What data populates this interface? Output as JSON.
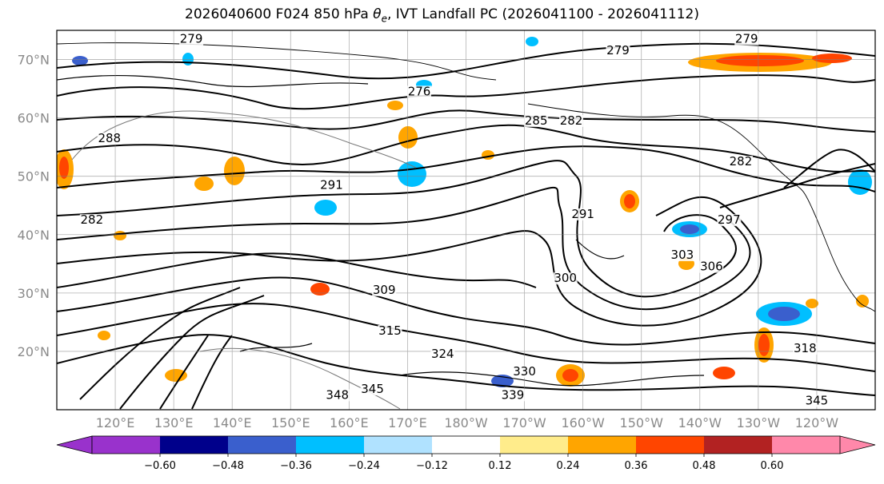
{
  "title": {
    "prefix": "2026040600 F024 850 hPa ",
    "symbol": "θ",
    "subscript": "e",
    "suffix": ", IVT Landfall PC (2026041100 - 2026041112)"
  },
  "map": {
    "lon_range": [
      110,
      250
    ],
    "lat_range": [
      10,
      75
    ],
    "lat_ticks": [
      {
        "value": 20,
        "label": "20°N"
      },
      {
        "value": 30,
        "label": "30°N"
      },
      {
        "value": 40,
        "label": "40°N"
      },
      {
        "value": 50,
        "label": "50°N"
      },
      {
        "value": 60,
        "label": "60°N"
      },
      {
        "value": 70,
        "label": "70°N"
      }
    ],
    "lon_ticks": [
      {
        "value": 120,
        "label": "120°E"
      },
      {
        "value": 130,
        "label": "130°E"
      },
      {
        "value": 140,
        "label": "140°E"
      },
      {
        "value": 150,
        "label": "150°E"
      },
      {
        "value": 160,
        "label": "160°E"
      },
      {
        "value": 170,
        "label": "170°E"
      },
      {
        "value": 180,
        "label": "180°W"
      },
      {
        "value": 190,
        "label": "170°W"
      },
      {
        "value": 200,
        "label": "160°W"
      },
      {
        "value": 210,
        "label": "150°W"
      },
      {
        "value": 220,
        "label": "140°W"
      },
      {
        "value": 230,
        "label": "130°W"
      },
      {
        "value": 240,
        "label": "120°W"
      }
    ],
    "gridlines": true,
    "contour_labels": [
      {
        "text": "279",
        "lon": 133,
        "lat": 73
      },
      {
        "text": "279",
        "lon": 206,
        "lat": 71
      },
      {
        "text": "279",
        "lon": 228,
        "lat": 73
      },
      {
        "text": "276",
        "lon": 172,
        "lat": 64
      },
      {
        "text": "288",
        "lon": 119,
        "lat": 56
      },
      {
        "text": "285",
        "lon": 192,
        "lat": 59
      },
      {
        "text": "282",
        "lon": 198,
        "lat": 59
      },
      {
        "text": "282",
        "lon": 227,
        "lat": 52
      },
      {
        "text": "282",
        "lon": 116,
        "lat": 42
      },
      {
        "text": "291",
        "lon": 157,
        "lat": 48
      },
      {
        "text": "291",
        "lon": 200,
        "lat": 43
      },
      {
        "text": "297",
        "lon": 225,
        "lat": 42
      },
      {
        "text": "303",
        "lon": 217,
        "lat": 36
      },
      {
        "text": "306",
        "lon": 222,
        "lat": 34
      },
      {
        "text": "300",
        "lon": 197,
        "lat": 32
      },
      {
        "text": "309",
        "lon": 166,
        "lat": 30
      },
      {
        "text": "315",
        "lon": 167,
        "lat": 23
      },
      {
        "text": "324",
        "lon": 176,
        "lat": 19
      },
      {
        "text": "318",
        "lon": 238,
        "lat": 20
      },
      {
        "text": "330",
        "lon": 190,
        "lat": 16
      },
      {
        "text": "339",
        "lon": 188,
        "lat": 12
      },
      {
        "text": "345",
        "lon": 164,
        "lat": 13
      },
      {
        "text": "348",
        "lon": 158,
        "lat": 12
      },
      {
        "text": "345",
        "lon": 240,
        "lat": 11
      }
    ]
  },
  "colorbar": {
    "colors": [
      "#9932cc",
      "#00008b",
      "#3a5fcd",
      "#00bfff",
      "#b0e2ff",
      "#ffffff",
      "#ffec8b",
      "#ffa500",
      "#ff4500",
      "#b22222",
      "#ff88aa"
    ],
    "low_extend_color": "#9932cc",
    "high_extend_color": "#ff88aa",
    "ticks": [
      "−0.60",
      "−0.48",
      "−0.36",
      "−0.24",
      "−0.12",
      "0.12",
      "0.24",
      "0.36",
      "0.48",
      "0.60"
    ]
  }
}
